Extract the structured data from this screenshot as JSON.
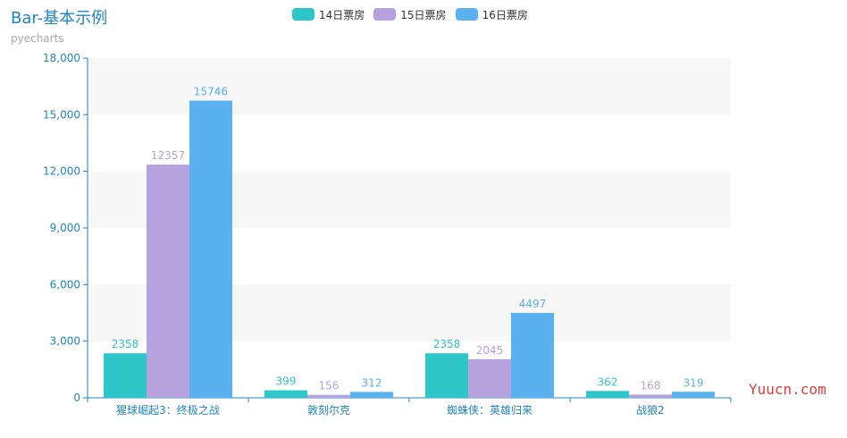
{
  "chart_data": {
    "type": "bar",
    "title": "Bar-基本示例",
    "subtitle": "pyecharts",
    "categories": [
      "猩球崛起3：终极之战",
      "敦刻尔克",
      "蜘蛛侠：英雄归来",
      "战狼2"
    ],
    "series": [
      {
        "name": "14日票房",
        "values": [
          2358,
          399,
          2358,
          362
        ],
        "color": "#2ec7c9"
      },
      {
        "name": "15日票房",
        "values": [
          12357,
          156,
          2045,
          168
        ],
        "color": "#b6a2de"
      },
      {
        "name": "16日票房",
        "values": [
          15746,
          312,
          4497,
          319
        ],
        "color": "#5ab1ef"
      }
    ],
    "ylim": [
      0,
      18000
    ],
    "yticks": [
      0,
      3000,
      6000,
      9000,
      12000,
      15000,
      18000
    ],
    "ytick_labels": [
      "0",
      "3,000",
      "6,000",
      "9,000",
      "12,000",
      "15,000",
      "18,000"
    ],
    "legend_position": "top-center",
    "grid": "alternating horizontal bands"
  },
  "watermark": "Yuucn.com",
  "colors": {
    "axis": "#1f86c1",
    "band": "#f7f7f7",
    "title": "#1f86c1"
  }
}
